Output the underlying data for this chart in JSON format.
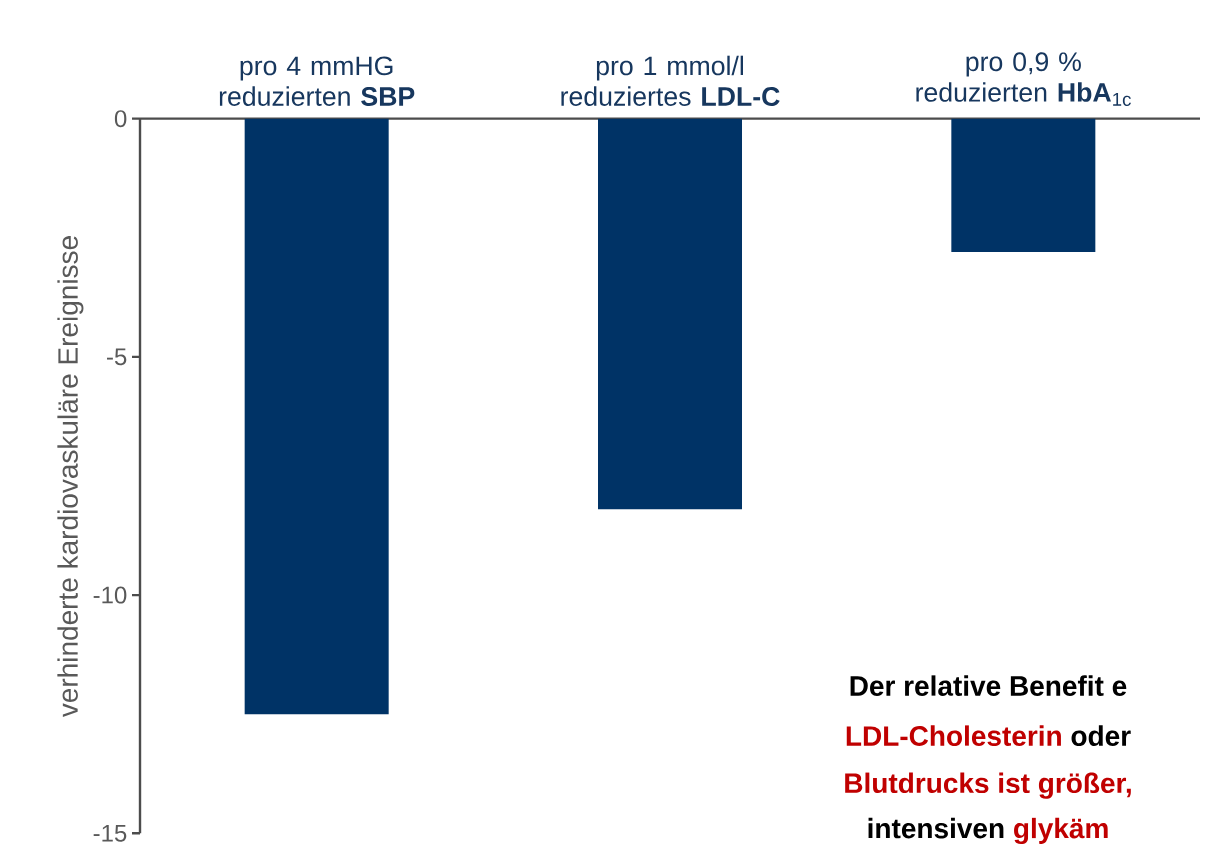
{
  "chart_data": {
    "type": "bar",
    "categories": [
      "pro 4 mmHG reduzierten **SBP**",
      "pro 1 mmol/l reduziertes **LDL-C**",
      "pro 0,9 % reduzierten **HbA**$_{1c}$"
    ],
    "values": [
      -12.5,
      -8.2,
      -2.8
    ],
    "color": "#003366",
    "ylabel": "verhinderte kardiovaskuläre Ereignisse",
    "ylim": [
      -15,
      0
    ],
    "yticks": [
      0,
      -5,
      -10,
      -15
    ],
    "annotations": [
      "Der relative Benefit e",
      "LDL-Cholesterin",
      "oder",
      "Blutdrucks ist größer,",
      "intensiven",
      "glykäm"
    ]
  }
}
